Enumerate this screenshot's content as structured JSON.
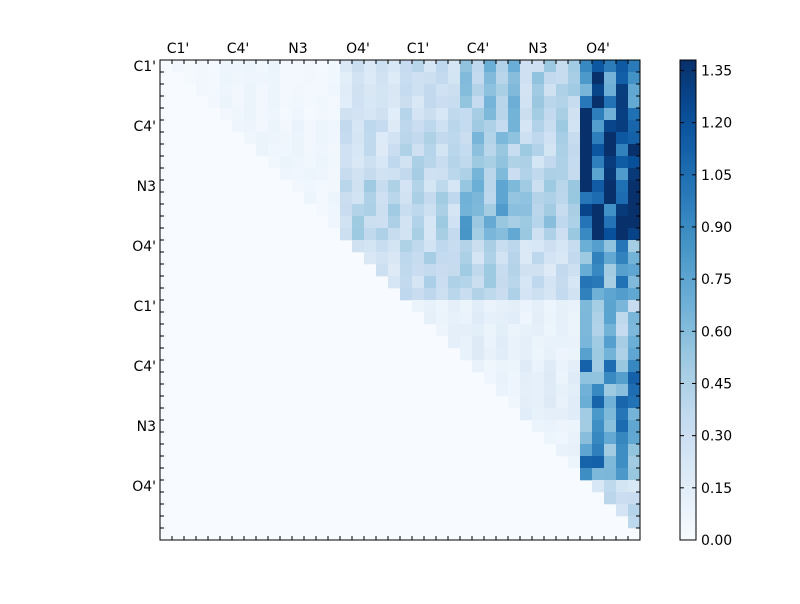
{
  "chart_data": {
    "type": "heatmap",
    "title": "",
    "xlabel": "",
    "ylabel": "",
    "colormap": "Blues",
    "vmin": 0.0,
    "vmax": 1.38,
    "n_rows": 40,
    "n_cols": 40,
    "x_tick_labels": [
      "C1'",
      "C4'",
      "N3",
      "O4'",
      "C1'",
      "C4'",
      "N3",
      "O4'"
    ],
    "x_tick_cells": [
      1,
      6,
      11,
      16,
      21,
      26,
      31,
      36
    ],
    "y_tick_labels": [
      "C1'",
      "C4'",
      "N3",
      "O4'",
      "C1'",
      "C4'",
      "N3",
      "O4'"
    ],
    "y_tick_cells": [
      0,
      5,
      10,
      15,
      20,
      25,
      30,
      35
    ],
    "colorbar": {
      "ticks": [
        0.0,
        0.15,
        0.3,
        0.45,
        0.6,
        0.75,
        0.9,
        1.05,
        1.2,
        1.35
      ],
      "tick_labels": [
        "0.00",
        "0.15",
        "0.30",
        "0.45",
        "0.60",
        "0.75",
        "0.90",
        "1.05",
        "1.20",
        "1.35"
      ],
      "position": "right"
    },
    "block_values": [
      [
        0.03,
        0.05,
        0.03,
        0.18,
        0.25,
        0.4,
        0.32,
        0.85
      ],
      [
        0.0,
        0.05,
        0.05,
        0.22,
        0.3,
        0.4,
        0.3,
        0.95
      ],
      [
        0.0,
        0.0,
        0.04,
        0.3,
        0.3,
        0.5,
        0.35,
        1.1
      ],
      [
        0.0,
        0.0,
        0.0,
        0.2,
        0.28,
        0.3,
        0.22,
        0.6
      ],
      [
        0.0,
        0.0,
        0.0,
        0.0,
        0.08,
        0.1,
        0.08,
        0.45
      ],
      [
        0.0,
        0.0,
        0.0,
        0.0,
        0.0,
        0.06,
        0.1,
        0.65
      ],
      [
        0.0,
        0.0,
        0.0,
        0.0,
        0.0,
        0.0,
        0.06,
        0.65
      ],
      [
        0.0,
        0.0,
        0.0,
        0.0,
        0.0,
        0.0,
        0.0,
        0.25
      ]
    ]
  }
}
